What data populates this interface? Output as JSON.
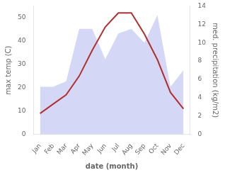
{
  "chart_data": {
    "type": "line",
    "xlabel": "date (month)",
    "ylabel": "max temp (C)",
    "y2label": "med. precipitation (kg/m2)",
    "categories": [
      "Jan",
      "Feb",
      "Mar",
      "Apr",
      "May",
      "Jun",
      "Jul",
      "Aug",
      "Sep",
      "Oct",
      "Nov",
      "Dec"
    ],
    "series": [
      {
        "type": "area",
        "axis": "y2",
        "color": "#b0b8ee",
        "values": [
          5.2,
          5.2,
          5.8,
          11.5,
          11.5,
          8.2,
          11.0,
          11.5,
          10.0,
          13.0,
          5.2,
          7.0
        ]
      },
      {
        "type": "line",
        "axis": "y",
        "color": "#b03030",
        "values": [
          9,
          13,
          17,
          25,
          36,
          46,
          52,
          52,
          43,
          32,
          18,
          11
        ]
      }
    ],
    "ylim": [
      0,
      55
    ],
    "yticks": [
      0,
      10,
      20,
      30,
      40,
      50
    ],
    "y2lim": [
      0,
      14
    ],
    "y2ticks": [
      0,
      2,
      4,
      6,
      8,
      10,
      12,
      14
    ],
    "grid": false
  }
}
